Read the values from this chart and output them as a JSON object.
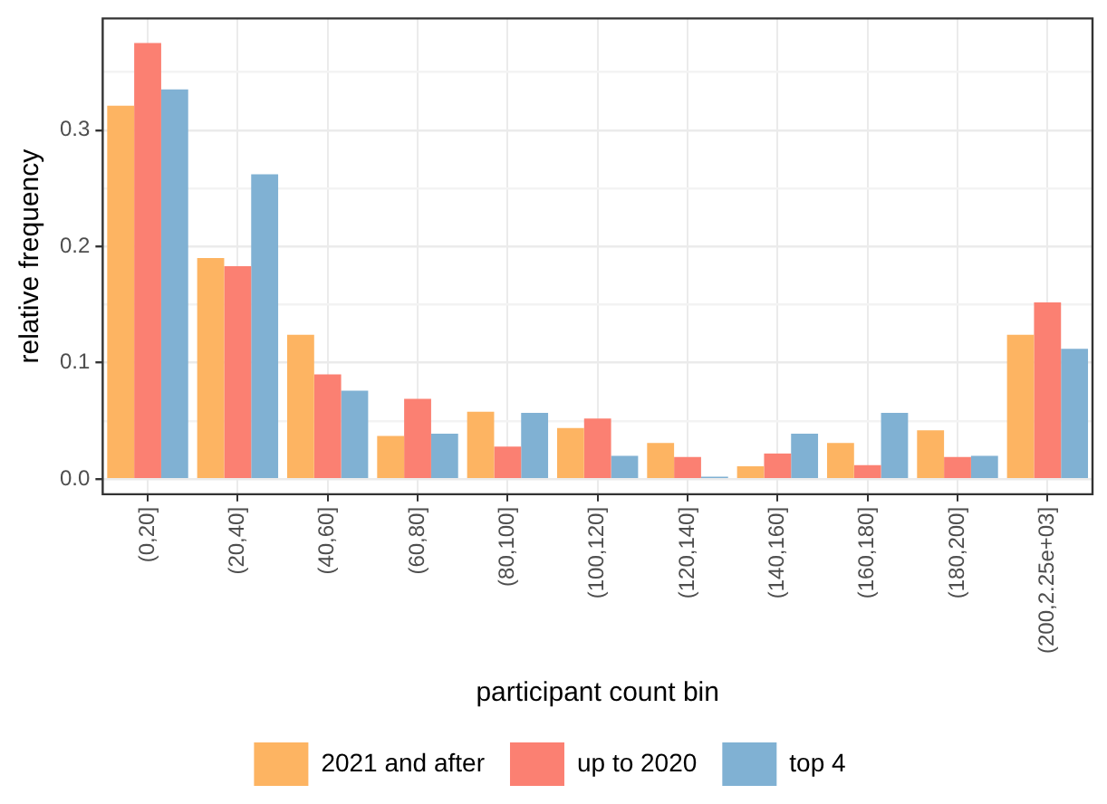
{
  "chart_data": {
    "type": "bar",
    "xlabel": "participant count bin",
    "ylabel": "relative frequency",
    "categories": [
      "(0,20]",
      "(20,40]",
      "(40,60]",
      "(60,80]",
      "(80,100]",
      "(100,120]",
      "(120,140]",
      "(140,160]",
      "(160,180]",
      "(180,200]",
      "(200,2.25e+03]"
    ],
    "series": [
      {
        "name": "2021 and after",
        "color": "#fdb462",
        "values": [
          0.321,
          0.19,
          0.124,
          0.037,
          0.058,
          0.044,
          0.031,
          0.011,
          0.031,
          0.042,
          0.124
        ]
      },
      {
        "name": "up to 2020",
        "color": "#fb8072",
        "values": [
          0.375,
          0.183,
          0.09,
          0.069,
          0.028,
          0.052,
          0.019,
          0.022,
          0.012,
          0.019,
          0.152
        ]
      },
      {
        "name": "top 4",
        "color": "#80b1d3",
        "values": [
          0.335,
          0.262,
          0.076,
          0.039,
          0.057,
          0.02,
          0.002,
          0.039,
          0.057,
          0.02,
          0.112
        ]
      }
    ],
    "ylim": [
      -0.013,
      0.396
    ],
    "yticks": [
      {
        "value": 0,
        "label": "0.0"
      },
      {
        "value": 0.05,
        "label": null
      },
      {
        "value": 0.1,
        "label": "0.1"
      },
      {
        "value": 0.15,
        "label": null
      },
      {
        "value": 0.2,
        "label": "0.2"
      },
      {
        "value": 0.25,
        "label": null
      },
      {
        "value": 0.3,
        "label": "0.3"
      },
      {
        "value": 0.35,
        "label": null
      }
    ],
    "grid": true,
    "legend": "bottom"
  }
}
